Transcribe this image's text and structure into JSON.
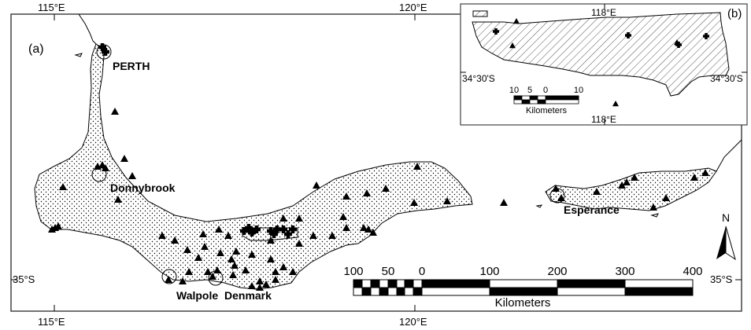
{
  "panels": {
    "main": "(a)",
    "inset": "(b)"
  },
  "graticule": {
    "top": [
      "115°E",
      "120°E"
    ],
    "bottom": [
      "115°E",
      "120°E"
    ],
    "left": "35°S",
    "right": "35°S"
  },
  "places": {
    "perth": "PERTH",
    "donnybrook": "Donnybrook",
    "esperance": "Esperance",
    "walpole": "Walpole",
    "denmark": "Denmark"
  },
  "north_arrow": "N",
  "scale_bar": {
    "ticks": [
      "100",
      "50",
      "0",
      "100",
      "200",
      "300",
      "400"
    ],
    "unit": "Kilometers"
  },
  "inset": {
    "top_label": "118°E",
    "bottom_label": "118°E",
    "left_label": "34°30'S",
    "right_label": "34°30'S",
    "scale_ticks": [
      "10",
      "5",
      "0",
      "10"
    ],
    "scale_unit": "Kilometers"
  },
  "colors": {
    "land": "#ffffff",
    "outline": "#000000",
    "frame": "#444444"
  }
}
